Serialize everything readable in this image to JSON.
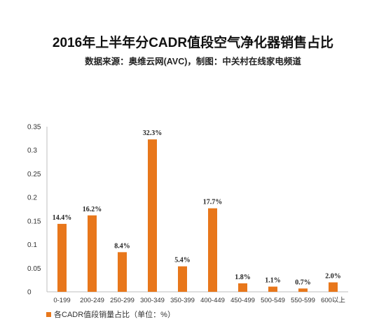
{
  "title": "2016年上半年分CADR值段空气净化器销售占比",
  "subtitle": "数据来源：奥维云网(AVC)，制图：中关村在线家电频道",
  "chart_data": {
    "type": "bar",
    "categories": [
      "0-199",
      "200-249",
      "250-299",
      "300-349",
      "350-399",
      "400-449",
      "450-499",
      "500-549",
      "550-599",
      "600以上"
    ],
    "series": [
      {
        "name": "各CADR值段销量占比（单位：%）",
        "values": [
          0.144,
          0.162,
          0.084,
          0.323,
          0.054,
          0.177,
          0.018,
          0.011,
          0.007,
          0.02
        ],
        "labels": [
          "14.4%",
          "16.2%",
          "8.4%",
          "32.3%",
          "5.4%",
          "17.7%",
          "1.8%",
          "1.1%",
          "0.7%",
          "2.0%"
        ]
      }
    ],
    "yticks": [
      "0",
      "0.05",
      "0.1",
      "0.15",
      "0.2",
      "0.25",
      "0.3",
      "0.35"
    ],
    "ylim": [
      0,
      0.35
    ],
    "grid": false,
    "legend_position": "bottom-left",
    "bar_color": "#e8771b"
  }
}
